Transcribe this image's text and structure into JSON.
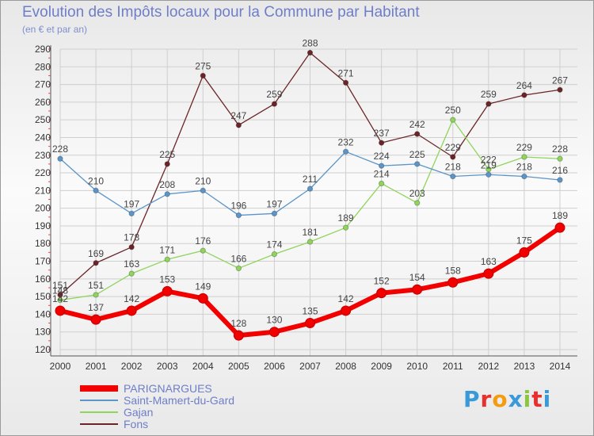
{
  "chart_data": {
    "type": "line",
    "title": "Evolution des Impôts locaux pour la Commune par Habitant",
    "subtitle": "(en € et par an)",
    "xlabel": "",
    "ylabel": "",
    "ylim": [
      120,
      290
    ],
    "yticks": [
      120,
      130,
      140,
      150,
      160,
      170,
      180,
      190,
      200,
      210,
      220,
      230,
      240,
      250,
      260,
      270,
      280,
      290
    ],
    "categories": [
      "2000",
      "2001",
      "2002",
      "2003",
      "2004",
      "2005",
      "2006",
      "2007",
      "2008",
      "2009",
      "2010",
      "2011",
      "2012",
      "2013",
      "2014"
    ],
    "grid": true,
    "legend_position": "bottom-left",
    "series": [
      {
        "name": "Fons",
        "color": "#6b2528",
        "values": [
          151,
          169,
          178,
          225,
          275,
          247,
          259,
          288,
          271,
          237,
          242,
          229,
          259,
          264,
          267
        ]
      },
      {
        "name": "Gajan",
        "color": "#8fd45b",
        "values": [
          148,
          151,
          163,
          171,
          176,
          166,
          174,
          181,
          189,
          214,
          203,
          250,
          222,
          229,
          228
        ]
      },
      {
        "name": "Saint-Mamert-du-Gard",
        "color": "#5b95c9",
        "values": [
          228,
          210,
          197,
          208,
          210,
          196,
          197,
          211,
          232,
          224,
          225,
          218,
          219,
          218,
          216
        ]
      },
      {
        "name": "PARIGNARGUES",
        "color": "#f20000",
        "values": [
          142,
          137,
          142,
          153,
          149,
          128,
          130,
          135,
          142,
          152,
          154,
          158,
          163,
          175,
          189
        ]
      }
    ],
    "legend_order": [
      "PARIGNARGUES",
      "Saint-Mamert-du-Gard",
      "Gajan",
      "Fons"
    ]
  },
  "logo": {
    "letters": [
      "P",
      "r",
      "o",
      "x",
      "i",
      "t",
      "i"
    ],
    "colors": [
      "#3a9ad9",
      "#e8302c",
      "#f39c12",
      "#3a9ad9",
      "#8cc63f",
      "#e8302c",
      "#3a9ad9"
    ]
  }
}
